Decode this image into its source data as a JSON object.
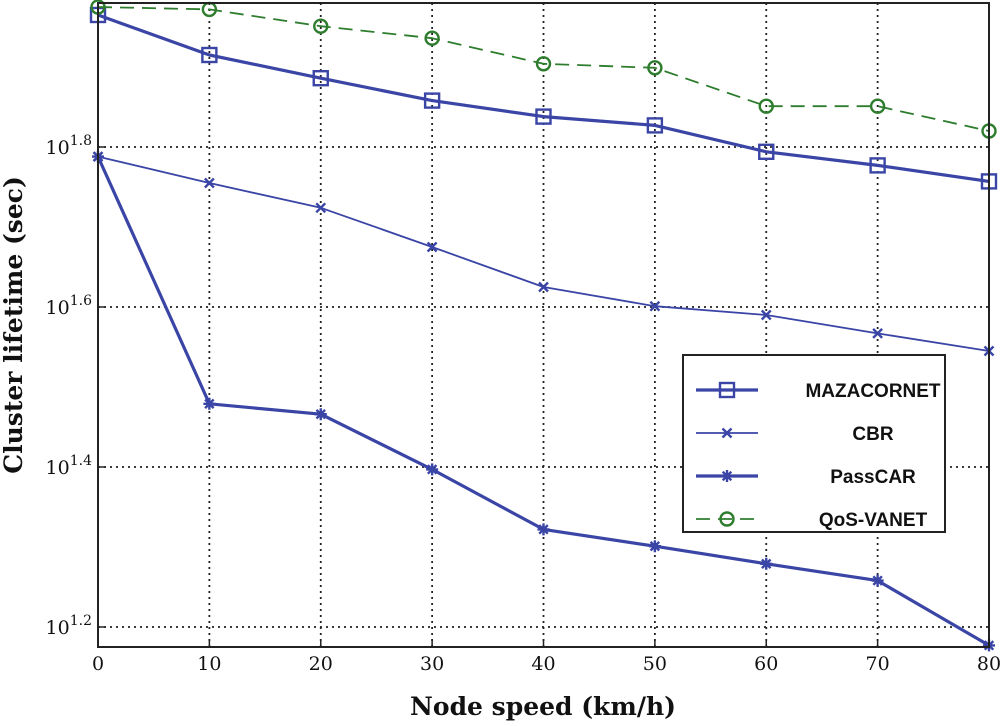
{
  "chart_data": {
    "type": "line",
    "title": "",
    "xlabel": "Node speed (km/h)",
    "ylabel": "Cluster lifetime (sec)",
    "yscale": "log10",
    "x": [
      0,
      10,
      20,
      30,
      40,
      50,
      60,
      70,
      80
    ],
    "xlim": [
      0,
      80
    ],
    "xticks": [
      0,
      10,
      20,
      30,
      40,
      50,
      60,
      70,
      80
    ],
    "ylim_exponent": [
      1.175,
      1.98
    ],
    "yticks": [
      {
        "base": "10",
        "exp": "1.2",
        "value": 1.2
      },
      {
        "base": "10",
        "exp": "1.4",
        "value": 1.4
      },
      {
        "base": "10",
        "exp": "1.6",
        "value": 1.6
      },
      {
        "base": "10",
        "exp": "1.8",
        "value": 1.8
      }
    ],
    "grid": true,
    "legend_position": "right",
    "series": [
      {
        "name": "MAZACORNET",
        "style": "solid",
        "marker": "square",
        "color": "#3A45A6",
        "log10_values": [
          1.965,
          1.915,
          1.886,
          1.858,
          1.838,
          1.827,
          1.794,
          1.777,
          1.757
        ]
      },
      {
        "name": "CBR",
        "style": "solid",
        "marker": "x",
        "color": "#3A45A6",
        "log10_values": [
          1.788,
          1.755,
          1.724,
          1.675,
          1.625,
          1.601,
          1.59,
          1.567,
          1.545
        ]
      },
      {
        "name": "PassCAR",
        "style": "solid",
        "marker": "star",
        "color": "#3A45A6",
        "log10_values": [
          1.788,
          1.479,
          1.466,
          1.397,
          1.322,
          1.301,
          1.279,
          1.258,
          1.177
        ]
      },
      {
        "name": "QoS-VANET",
        "style": "dashed",
        "marker": "circle",
        "color": "#2E7D2E",
        "log10_values": [
          1.975,
          1.972,
          1.951,
          1.936,
          1.904,
          1.899,
          1.851,
          1.851,
          1.82
        ]
      }
    ]
  }
}
